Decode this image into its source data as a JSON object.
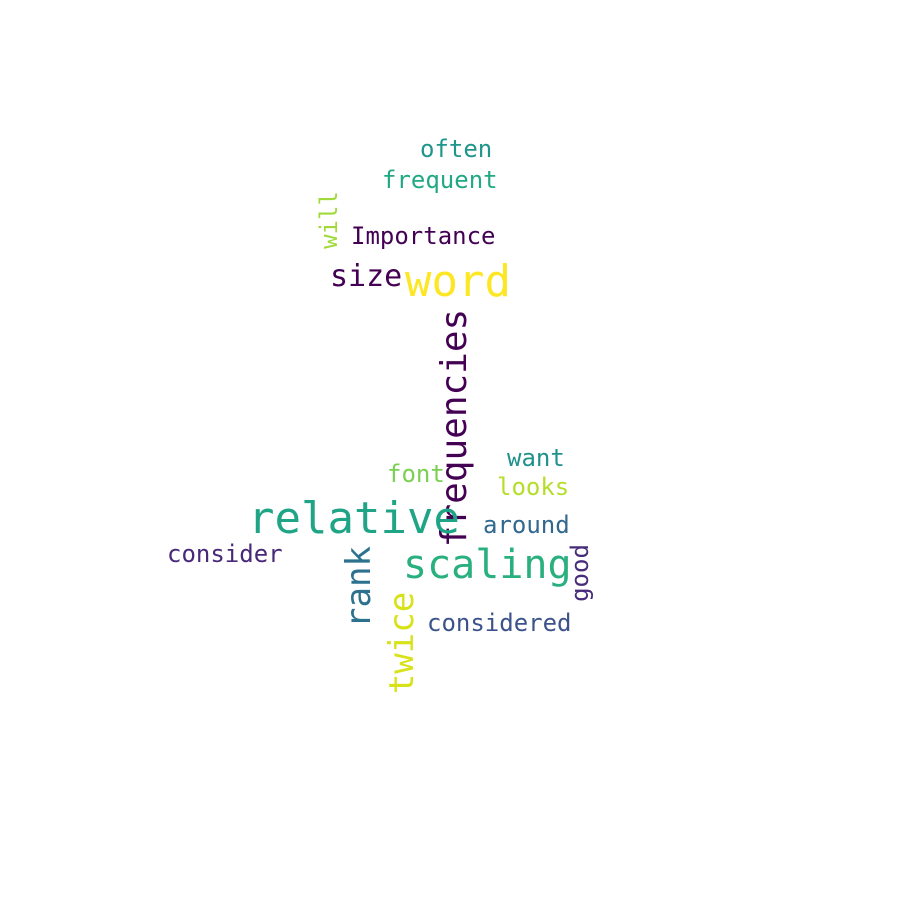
{
  "words": [
    {
      "text": "often",
      "color": "#1f968b"
    },
    {
      "text": "frequent",
      "color": "#22a884"
    },
    {
      "text": "will",
      "color": "#a0da39"
    },
    {
      "text": "Importance",
      "color": "#440154"
    },
    {
      "text": "size",
      "color": "#440154"
    },
    {
      "text": "word",
      "color": "#fde725"
    },
    {
      "text": "frequencies",
      "color": "#440154"
    },
    {
      "text": "want",
      "color": "#21918c"
    },
    {
      "text": "font",
      "color": "#7ad151"
    },
    {
      "text": "looks",
      "color": "#b5de2b"
    },
    {
      "text": "relative",
      "color": "#20a486"
    },
    {
      "text": "around",
      "color": "#31688e"
    },
    {
      "text": "consider",
      "color": "#482878"
    },
    {
      "text": "scaling",
      "color": "#2ab07f"
    },
    {
      "text": "good",
      "color": "#472c7a"
    },
    {
      "text": "rank",
      "color": "#2c728e"
    },
    {
      "text": "considered",
      "color": "#3b528b"
    },
    {
      "text": "twice",
      "color": "#d8e219"
    }
  ]
}
